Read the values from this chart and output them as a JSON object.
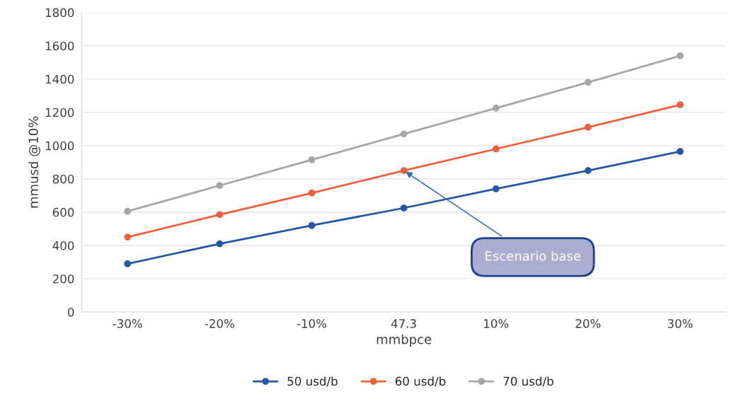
{
  "chart_data": {
    "type": "line",
    "xlabel": "mmbpce",
    "ylabel": "mmusd @10%",
    "categories": [
      "-30%",
      "-20%",
      "-10%",
      "47.3",
      "10%",
      "20%",
      "30%"
    ],
    "series": [
      {
        "name": "50 usd/b",
        "color": "#2457a4",
        "values": [
          290,
          410,
          520,
          625,
          740,
          850,
          965
        ]
      },
      {
        "name": "60 usd/b",
        "color": "#f0603e",
        "values": [
          450,
          585,
          715,
          850,
          980,
          1110,
          1245
        ]
      },
      {
        "name": "70 usd/b",
        "color": "#a6a6a6",
        "values": [
          605,
          760,
          915,
          1070,
          1225,
          1380,
          1540
        ]
      }
    ],
    "ylim": [
      0,
      1800
    ],
    "yticks": [
      0,
      200,
      400,
      600,
      800,
      1000,
      1200,
      1400,
      1600,
      1800
    ],
    "grid": "y",
    "legend": "bottom",
    "marker": "circle",
    "line_style": "solid",
    "annotations": [
      {
        "text": "Escenario base",
        "x": "47.3",
        "y": 850
      }
    ]
  }
}
